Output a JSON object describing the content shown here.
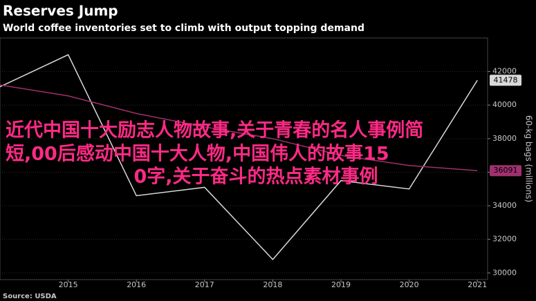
{
  "chart_data": {
    "type": "line",
    "title": "Reserves Jump",
    "subtitle": "World coffee inventories set to climb with output topping demand",
    "y_label": "60-kg bags (millions)",
    "source": "Source: USDA",
    "annotations": [
      "近代中国十大励志人物故事,关于青春的名人事例简",
      "短,00后感动中国十大人物,中国伟人的故事15",
      "0字,关于奋斗的热点素材事例"
    ],
    "x": [
      2014,
      2015,
      2016,
      2017,
      2018,
      2019,
      2020,
      2021
    ],
    "xlim": [
      2014,
      2021.15
    ],
    "xticks": [
      2015,
      2016,
      2017,
      2018,
      2019,
      2020,
      2021
    ],
    "ylim": [
      29600,
      44000
    ],
    "yticks": [
      30000,
      32000,
      34000,
      36000,
      38000,
      40000,
      42000
    ],
    "grid": true,
    "series": [
      {
        "color": "#d9d9d9",
        "values": [
          41090,
          43000,
          34600,
          35100,
          30800,
          35500,
          35000,
          41478
        ]
      },
      {
        "color": "#a0306e",
        "values": [
          41200,
          40550,
          39500,
          38700,
          38000,
          37000,
          36400,
          36091
        ]
      }
    ]
  }
}
